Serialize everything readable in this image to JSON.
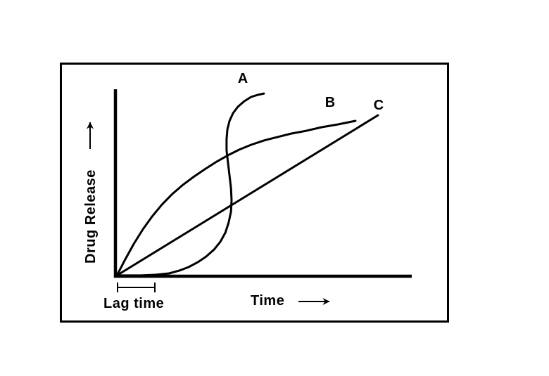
{
  "figure": {
    "background_color": "#ffffff",
    "ink_color": "#000000"
  },
  "chart_data": {
    "type": "line",
    "title": "",
    "xlabel": "Time",
    "ylabel": "Drug Release",
    "xlabel_arrow": "→",
    "ylabel_arrow": "→",
    "x_range": [
      0,
      100
    ],
    "y_range": [
      0,
      100
    ],
    "grid": false,
    "tick_labels": [],
    "legend_position": "none (curves labeled inline)",
    "annotations": {
      "lag_time": {
        "label": "Lag time",
        "x_start": 0,
        "x_end": 13.8
      }
    },
    "series": [
      {
        "name": "A",
        "points": [
          [
            0.5,
            0.4
          ],
          [
            8.6,
            0.4
          ],
          [
            13.8,
            0.8
          ],
          [
            18.1,
            1.5
          ],
          [
            21.6,
            3.0
          ],
          [
            24.7,
            4.9
          ],
          [
            27.8,
            7.5
          ],
          [
            30.6,
            10.5
          ],
          [
            33.3,
            14.3
          ],
          [
            35.4,
            18.4
          ],
          [
            37.1,
            23.3
          ],
          [
            38.2,
            28.6
          ],
          [
            39.0,
            34.6
          ],
          [
            39.2,
            40.6
          ],
          [
            39.0,
            47.0
          ],
          [
            38.5,
            53.8
          ],
          [
            38.0,
            60.5
          ],
          [
            37.5,
            67.3
          ],
          [
            37.5,
            73.3
          ],
          [
            37.8,
            78.6
          ],
          [
            38.5,
            83.1
          ],
          [
            39.7,
            87.2
          ],
          [
            41.3,
            90.6
          ],
          [
            43.5,
            93.6
          ],
          [
            45.8,
            95.9
          ],
          [
            48.0,
            97.0
          ],
          [
            50.1,
            97.7
          ]
        ]
      },
      {
        "name": "B",
        "points": [
          [
            0.5,
            0.4
          ],
          [
            3.3,
            9.0
          ],
          [
            6.2,
            17.3
          ],
          [
            9.3,
            25.2
          ],
          [
            12.4,
            32.0
          ],
          [
            15.7,
            38.3
          ],
          [
            19.2,
            44.0
          ],
          [
            22.8,
            48.9
          ],
          [
            26.6,
            53.4
          ],
          [
            30.4,
            57.5
          ],
          [
            34.2,
            61.3
          ],
          [
            38.0,
            64.7
          ],
          [
            41.8,
            67.7
          ],
          [
            45.8,
            70.3
          ],
          [
            50.1,
            72.6
          ],
          [
            54.6,
            74.4
          ],
          [
            59.4,
            76.3
          ],
          [
            64.4,
            77.8
          ],
          [
            69.6,
            79.7
          ],
          [
            75.1,
            81.2
          ],
          [
            81.0,
            83.1
          ]
        ]
      },
      {
        "name": "C",
        "points": [
          [
            0.5,
            0.4
          ],
          [
            88.6,
            86.1
          ]
        ]
      }
    ]
  }
}
